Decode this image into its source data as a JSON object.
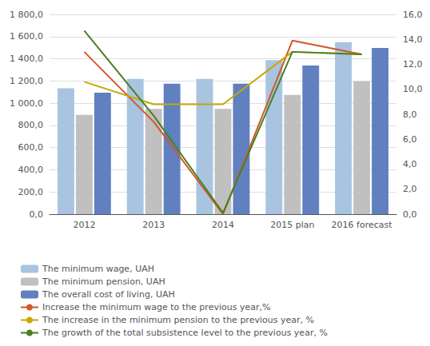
{
  "chart_data": {
    "type": "bar",
    "categories": [
      "2012",
      "2013",
      "2014",
      "2015 plan",
      "2016 forecast"
    ],
    "series": [
      {
        "name": "The minimum wage, UAH",
        "type": "bar",
        "color": "#a8c4e0",
        "values": [
          1134,
          1218,
          1218,
          1387,
          1550
        ]
      },
      {
        "name": "The minimum pension, UAH",
        "type": "bar",
        "color": "#c0c0c0",
        "values": [
          894,
          949,
          949,
          1074,
          1197
        ]
      },
      {
        "name": "The overall cost of living, UAH",
        "type": "bar",
        "color": "#6080c0",
        "values": [
          1095,
          1176,
          1176,
          1340,
          1497
        ]
      },
      {
        "name": "Increase the minimum wage to the previous year,%",
        "type": "line",
        "axis": "y2",
        "color": "#d05828",
        "values": [
          13.0,
          7.4,
          0.0,
          13.9,
          12.8
        ]
      },
      {
        "name": "The increase in the minimum pension to the previous year, %",
        "type": "line",
        "axis": "y2",
        "color": "#c8a800",
        "values": [
          10.6,
          8.8,
          8.8,
          13.0,
          12.8
        ]
      },
      {
        "name": "The growth of the total subsistence level to the previous year, %",
        "type": "line",
        "axis": "y2",
        "color": "#488020",
        "values": [
          14.7,
          7.9,
          0.1,
          13.0,
          12.8
        ]
      }
    ],
    "ylim": [
      0,
      1800
    ],
    "yticks": [
      {
        "value": 0,
        "label": "0,0"
      },
      {
        "value": 200,
        "label": "200,0"
      },
      {
        "value": 400,
        "label": "400,0"
      },
      {
        "value": 600,
        "label": "600,0"
      },
      {
        "value": 800,
        "label": "800,0"
      },
      {
        "value": 1000,
        "label": "1 000,0"
      },
      {
        "value": 1200,
        "label": "1 200,0"
      },
      {
        "value": 1400,
        "label": "1 400,0"
      },
      {
        "value": 1600,
        "label": "1 600,0"
      },
      {
        "value": 1800,
        "label": "1 800,0"
      }
    ],
    "y2lim": [
      0,
      16
    ],
    "y2ticks": [
      {
        "value": 0,
        "label": "0,0"
      },
      {
        "value": 2,
        "label": "2,0"
      },
      {
        "value": 4,
        "label": "4,0"
      },
      {
        "value": 6,
        "label": "6,0"
      },
      {
        "value": 8,
        "label": "8,0"
      },
      {
        "value": 10,
        "label": "10,0"
      },
      {
        "value": 12,
        "label": "12,0"
      },
      {
        "value": 14,
        "label": "14,0"
      },
      {
        "value": 16,
        "label": "16,0"
      }
    ],
    "grid": true,
    "legend": "lower left"
  }
}
